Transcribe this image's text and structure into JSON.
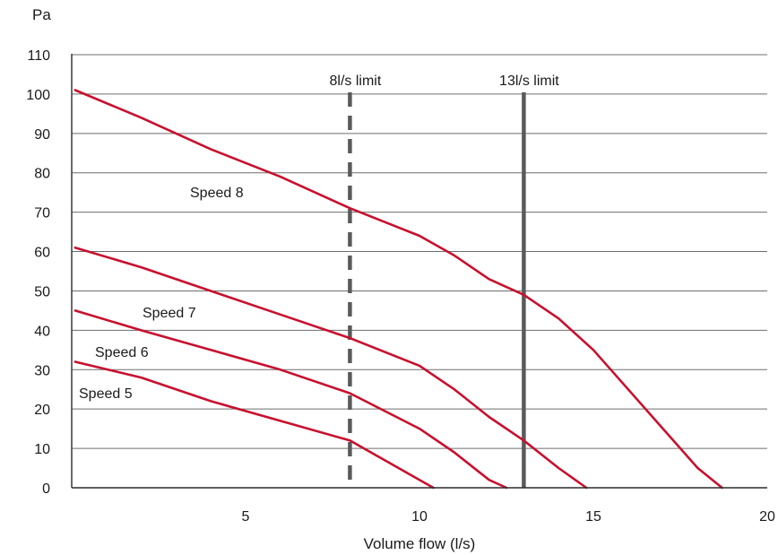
{
  "chart_data": {
    "type": "line",
    "title": "",
    "xlabel": "Volume flow (l/s)",
    "ylabel": "Pa",
    "xlim": [
      0,
      20
    ],
    "ylim": [
      0,
      110
    ],
    "x_ticks": [
      5,
      10,
      15,
      20
    ],
    "y_ticks": [
      0,
      10,
      20,
      30,
      40,
      50,
      60,
      70,
      80,
      90,
      100,
      110
    ],
    "grid": "horizontal",
    "series_color": "#c8102e",
    "series": [
      {
        "name": "Speed 8",
        "x": [
          0.1,
          2,
          4,
          6,
          8,
          10,
          11,
          12,
          13,
          14,
          15,
          16,
          17,
          18,
          18.7
        ],
        "y": [
          101,
          94,
          86,
          79,
          71,
          64,
          59,
          53,
          49,
          43,
          35,
          25,
          15,
          5,
          0
        ]
      },
      {
        "name": "Speed 7",
        "x": [
          0.1,
          2,
          4,
          6,
          8,
          10,
          11,
          12,
          13,
          14,
          14.8
        ],
        "y": [
          61,
          56,
          50,
          44,
          38,
          31,
          25,
          18,
          12,
          5,
          0
        ]
      },
      {
        "name": "Speed 6",
        "x": [
          0.1,
          2,
          4,
          6,
          8,
          10,
          11,
          12,
          12.5
        ],
        "y": [
          45,
          40,
          35,
          30,
          24,
          15,
          9,
          2,
          0
        ]
      },
      {
        "name": "Speed 5",
        "x": [
          0.1,
          2,
          4,
          6,
          8,
          9,
          10,
          10.4
        ],
        "y": [
          32,
          28,
          22,
          17,
          12,
          7,
          2,
          0
        ]
      }
    ],
    "reference_lines": [
      {
        "label": "8l/s limit",
        "x": 8,
        "style": "dashed",
        "color": "#5a5a5a"
      },
      {
        "label": "13l/s limit",
        "x": 13,
        "style": "solid",
        "color": "#5a5a5a"
      }
    ]
  }
}
